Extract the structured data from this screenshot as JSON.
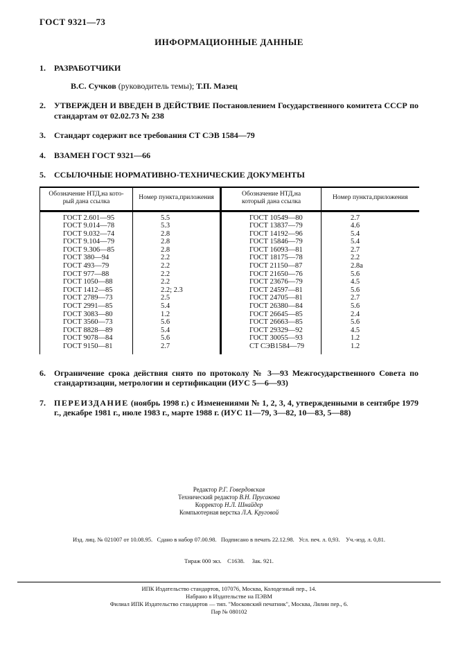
{
  "page": {
    "doc_number": "ГОСТ 9321—73",
    "title": "ИНФОРМАЦИОННЫЕ ДАННЫЕ"
  },
  "sections_top": [
    {
      "number": "1.",
      "parts": [
        {
          "text": "РАЗРАБОТЧИКИ",
          "bold": true
        }
      ]
    },
    {
      "number": "",
      "indent": true,
      "parts": [
        {
          "text": "В.С. Сучков ",
          "bold": true
        },
        {
          "text": "(руководитель темы); ",
          "bold": false
        },
        {
          "text": "Т.П. Мазец",
          "bold": true
        }
      ]
    },
    {
      "number": "2.",
      "parts": [
        {
          "text": "УТВЕРЖДЕН И ВВЕДЕН В ДЕЙСТВИЕ Постановлением Государственного комитета СССР по стандартам от 02.02.73 № 238",
          "bold": true
        }
      ]
    },
    {
      "number": "3.",
      "parts": [
        {
          "text": "Стандарт содержит все требования СТ СЭВ 1584—79",
          "bold": true
        }
      ]
    },
    {
      "number": "4.",
      "parts": [
        {
          "text": "ВЗАМЕН ГОСТ 9321—66",
          "bold": true
        }
      ]
    },
    {
      "number": "5.",
      "parts": [
        {
          "text": "ССЫЛОЧНЫЕ НОРМАТИВНО-ТЕХНИЧЕСКИЕ ДОКУМЕНТЫ",
          "bold": true
        }
      ]
    }
  ],
  "table": {
    "headers": [
      "Обозначение НТД,на кото-\nрый дана ссылка",
      "Номер пункта,приложения",
      "Обозначение НТД,на\nкоторый дана ссылка",
      "Номер пункта,приложения"
    ],
    "left_rows": [
      [
        "ГОСТ 2.601—95",
        "5.5"
      ],
      [
        "ГОСТ 9.014—78",
        "5.3"
      ],
      [
        "ГОСТ 9.032—74",
        "2.8"
      ],
      [
        "ГОСТ 9.104—79",
        "2.8"
      ],
      [
        "ГОСТ 9.306—85",
        "2.8"
      ],
      [
        "ГОСТ 380—94",
        "2.2"
      ],
      [
        "ГОСТ 493—79",
        "2.2"
      ],
      [
        "ГОСТ 977—88",
        "2.2"
      ],
      [
        "ГОСТ 1050—88",
        "2.2"
      ],
      [
        "ГОСТ 1412—85",
        "2.2; 2.3"
      ],
      [
        "ГОСТ 2789—73",
        "2.5"
      ],
      [
        "ГОСТ 2991—85",
        "5.4"
      ],
      [
        "ГОСТ 3083—80",
        "1.2"
      ],
      [
        "ГОСТ 3560—73",
        "5.6"
      ],
      [
        "ГОСТ 8828—89",
        "5.4"
      ],
      [
        "ГОСТ 9078—84",
        "5.6"
      ],
      [
        "ГОСТ 9150—81",
        "2.7"
      ]
    ],
    "right_rows": [
      [
        "ГОСТ 10549—80",
        "2.7"
      ],
      [
        "ГОСТ 13837—79",
        "4.6"
      ],
      [
        "ГОСТ 14192—96",
        "5.4"
      ],
      [
        "ГОСТ 15846—79",
        "5.4"
      ],
      [
        "ГОСТ 16093—81",
        "2.7"
      ],
      [
        "ГОСТ 18175—78",
        "2.2"
      ],
      [
        "ГОСТ 21150—87",
        "2.8а"
      ],
      [
        "ГОСТ 21650—76",
        "5.6"
      ],
      [
        "ГОСТ 23676—79",
        "4.5"
      ],
      [
        "ГОСТ 24597—81",
        "5.6"
      ],
      [
        "ГОСТ 24705—81",
        "2.7"
      ],
      [
        "ГОСТ 26380—84",
        "5.6"
      ],
      [
        "ГОСТ 26645—85",
        "2.4"
      ],
      [
        "ГОСТ 26663—85",
        "5.6"
      ],
      [
        "ГОСТ 29329—92",
        "4.5"
      ],
      [
        "ГОСТ 30055—93",
        "1.2"
      ],
      [
        "СТ СЭВ1584—79",
        "1.2"
      ]
    ]
  },
  "sections_bottom": [
    {
      "number": "6.",
      "parts": [
        {
          "text": "Ограничение срока действия снято по протоколу № 3—93 Межгосударственного Совета по стандартизации, метрологии и сертификации (ИУС 5—6—93)",
          "bold": true
        }
      ]
    },
    {
      "number": "7.",
      "parts": [
        {
          "text": "ПЕРЕИЗДАНИЕ",
          "bold": true,
          "spaced": true
        },
        {
          "text": " (ноябрь 1998 г.) с Изменениями № 1, 2, 3, 4, утвержденными в сентябре 1979 г., декабре 1981 г., июле 1983 г., марте 1988 г. (ИУС 11—79, 3—82, 10—83, 5—88)",
          "bold": true
        }
      ]
    }
  ],
  "credits": [
    {
      "role": "Редактор",
      "name": "Р.Г. Говердовская"
    },
    {
      "role": "Технический редактор",
      "name": "В.Н. Прусакова"
    },
    {
      "role": "Корректор",
      "name": "Н.Л. Шнайдер"
    },
    {
      "role": "Компьютерная верстка",
      "name": "Л.А. Круговой"
    }
  ],
  "imprint": {
    "line1": "Изд. лиц. № 021007 от 10.08.95.   Сдано в набор 07.00.98.   Подписано в печать 22.12.98.   Усл. печ. л. 0,93.    Уч.-изд. л. 0,81.",
    "line2": "Тираж 000 экз.    С1638.     Зак. 921."
  },
  "publisher": {
    "lines": [
      "ИПК Издательство стандартов, 107076, Москва, Колодезный пер., 14.",
      "Набрано в Издательстве на ПЭВМ",
      "Филиал ИПК Издательство стандартов — тип. \"Московский печатник\", Москва, Лялин пер., 6.",
      "Пар № 080102"
    ]
  }
}
